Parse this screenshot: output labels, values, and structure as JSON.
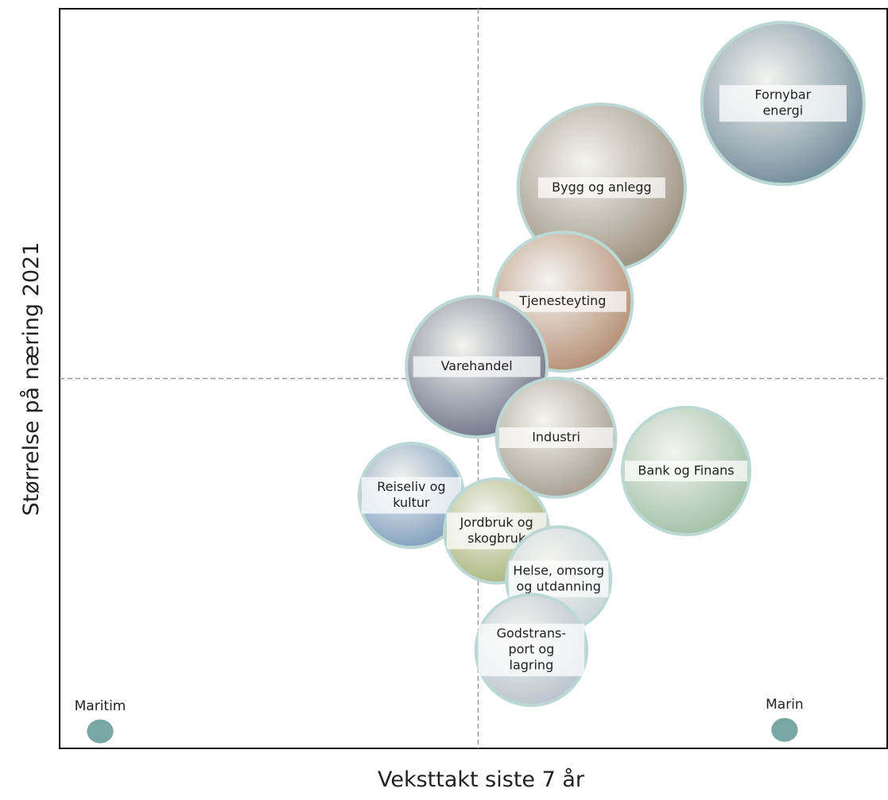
{
  "chart_data": {
    "type": "bubble",
    "x_label": "Veksttakt siste 7 år",
    "y_label": "Størrelse på næring 2021",
    "xlim": [
      0,
      100
    ],
    "ylim": [
      0,
      100
    ],
    "points": [
      {
        "name": [
          "Fornybar",
          "energi"
        ],
        "x": 87.4,
        "y": 87.2,
        "size": 9.8,
        "color": "#6f8a99"
      },
      {
        "name": [
          "Bygg og anlegg"
        ],
        "x": 65.5,
        "y": 75.8,
        "size": 10.1,
        "color": "#9a8f7e"
      },
      {
        "name": [
          "Tjenesteyting"
        ],
        "x": 60.8,
        "y": 60.4,
        "size": 8.4,
        "color": "#b48c72"
      },
      {
        "name": [
          "Varehandel"
        ],
        "x": 50.4,
        "y": 51.6,
        "size": 8.5,
        "color": "#6d7488"
      },
      {
        "name": [
          "Industri"
        ],
        "x": 60.0,
        "y": 42.0,
        "size": 7.2,
        "color": "#a59c8e"
      },
      {
        "name": [
          "Bank og Finans"
        ],
        "x": 75.7,
        "y": 37.5,
        "size": 7.7,
        "color": "#9fc0a4"
      },
      {
        "name": [
          "Reiseliv og",
          "kultur"
        ],
        "x": 42.5,
        "y": 34.2,
        "size": 6.3,
        "color": "#7e9dbe"
      },
      {
        "name": [
          "Jordbruk og",
          "skogbruk"
        ],
        "x": 52.8,
        "y": 29.4,
        "size": 6.3,
        "color": "#a9b47a"
      },
      {
        "name": [
          "Helse, omsorg",
          "og utdanning"
        ],
        "x": 60.3,
        "y": 22.9,
        "size": 6.3,
        "color": "#c9d6d8"
      },
      {
        "name": [
          "Godstrans-",
          "port og",
          "lagring"
        ],
        "x": 57.0,
        "y": 13.3,
        "size": 6.7,
        "color": "#b9c3cc"
      },
      {
        "name": [
          "Maritim"
        ],
        "x": 4.9,
        "y": 2.3,
        "size": 1.6,
        "color": "#78a7a5"
      },
      {
        "name": [
          "Marin"
        ],
        "x": 87.6,
        "y": 2.5,
        "size": 1.6,
        "color": "#78a7a5"
      }
    ]
  }
}
